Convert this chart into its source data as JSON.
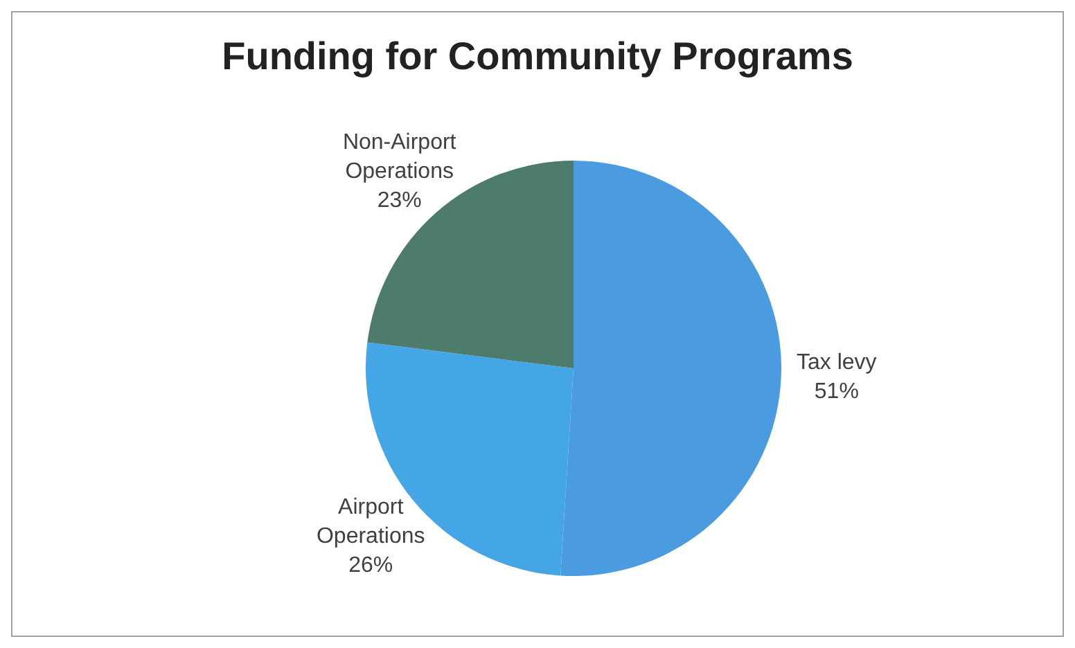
{
  "chart_data": {
    "type": "pie",
    "title": "Funding for Community Programs",
    "categories": [
      "Tax levy",
      "Airport Operations",
      "Non-Airport Operations"
    ],
    "values": [
      51,
      26,
      23
    ],
    "colors": [
      "#4a9be0",
      "#45a6e6",
      "#4e7c6c"
    ],
    "value_labels": [
      "51%",
      "26%",
      "23%"
    ],
    "legend": false
  }
}
